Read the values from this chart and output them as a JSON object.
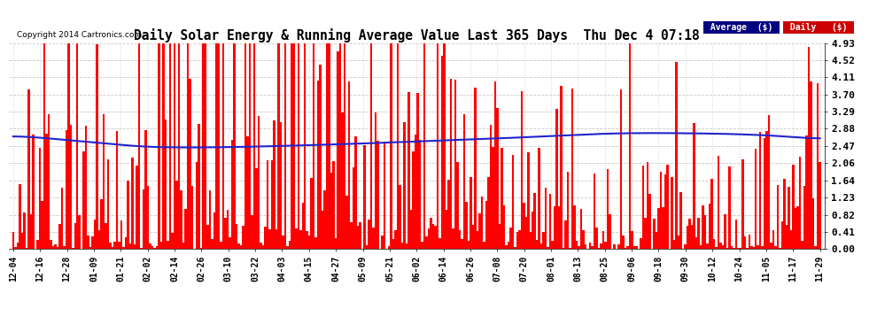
{
  "title": "Daily Solar Energy & Running Average Value Last 365 Days  Thu Dec 4 07:18",
  "copyright": "Copyright 2014 Cartronics.com",
  "bar_color": "#ff0000",
  "avg_line_color": "#2222cc",
  "background_color": "#ffffff",
  "plot_bg_color": "#ffffff",
  "grid_color": "#bbbbbb",
  "yticks": [
    0.0,
    0.41,
    0.82,
    1.23,
    1.64,
    2.06,
    2.47,
    2.88,
    3.29,
    3.7,
    4.11,
    4.52,
    4.93
  ],
  "ylim": [
    0.0,
    4.93
  ],
  "legend_avg_bg": "#000080",
  "legend_daily_bg": "#cc0000",
  "legend_avg_text": "Average  ($)",
  "legend_daily_text": "Daily   ($)",
  "n_days": 366,
  "avg_line": [
    2.72,
    2.68,
    2.63,
    2.58,
    2.54,
    2.51,
    2.48,
    2.46,
    2.44,
    2.43,
    2.43,
    2.43,
    2.44,
    2.45,
    2.46,
    2.47,
    2.48,
    2.49,
    2.5,
    2.51,
    2.52,
    2.53,
    2.54,
    2.55,
    2.56,
    2.57,
    2.58,
    2.59,
    2.6,
    2.61,
    2.62,
    2.63,
    2.64,
    2.65,
    2.66,
    2.67,
    2.68,
    2.69,
    2.7,
    2.71,
    2.72,
    2.73,
    2.74,
    2.74,
    2.75,
    2.75,
    2.76,
    2.76,
    2.77,
    2.77,
    2.77,
    2.78,
    2.78,
    2.78,
    2.78,
    2.78,
    2.78,
    2.78,
    2.78,
    2.78,
    2.78,
    2.77,
    2.77,
    2.77,
    2.76,
    2.76,
    2.75,
    2.75,
    2.74,
    2.73,
    2.72,
    2.71,
    2.7,
    2.69,
    2.68,
    2.67,
    2.66,
    2.65,
    2.64,
    2.63,
    2.62,
    2.61,
    2.6,
    2.59,
    2.58,
    2.57,
    2.56,
    2.55,
    2.54,
    2.53,
    2.52,
    2.51,
    2.5,
    2.49,
    2.48,
    2.47,
    2.46,
    2.46,
    2.45,
    2.45,
    2.44,
    2.44,
    2.43,
    2.43,
    2.43,
    2.43,
    2.43,
    2.43,
    2.43,
    2.44,
    2.44,
    2.45,
    2.46,
    2.48,
    2.5,
    2.51,
    2.52,
    2.54,
    2.55,
    2.56
  ]
}
